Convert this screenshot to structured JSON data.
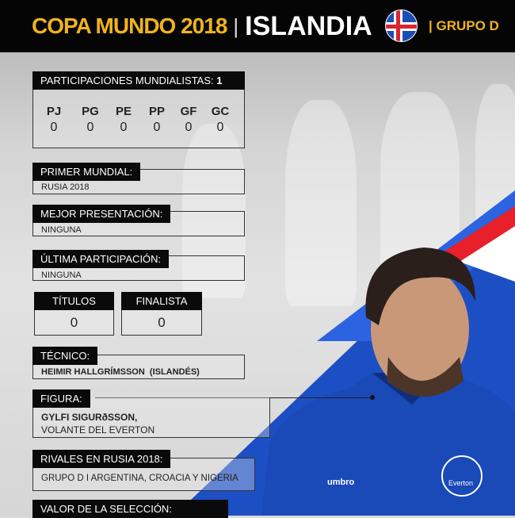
{
  "header": {
    "title_left": "COPA MUNDO 2018",
    "separator": "|",
    "title_right": "ISLANDIA",
    "group": "| GRUPO D",
    "flag_icon": "iceland-flag-icon",
    "accent": "#f0b41c"
  },
  "participaciones": {
    "label": "PARTICIPACIONES MUNDIALISTAS:",
    "count": "1",
    "stats": [
      {
        "k": "PJ",
        "v": "0"
      },
      {
        "k": "PG",
        "v": "0"
      },
      {
        "k": "PE",
        "v": "0"
      },
      {
        "k": "PP",
        "v": "0"
      },
      {
        "k": "GF",
        "v": "0"
      },
      {
        "k": "GC",
        "v": "0"
      }
    ]
  },
  "primer_mundial": {
    "label": "PRIMER MUNDIAL:",
    "value": "RUSIA 2018"
  },
  "mejor_presentacion": {
    "label": "MEJOR PRESENTACIÓN:",
    "value": "NINGUNA"
  },
  "ultima_participacion": {
    "label": "ÚLTIMA PARTICIPACIÓN:",
    "value": "NINGUNA"
  },
  "titulos": {
    "label": "TÍTULOS",
    "value": "0"
  },
  "finalista": {
    "label": "FINALISTA",
    "value": "0"
  },
  "tecnico": {
    "label": "TÉCNICO:",
    "name": "HEIMIR HALLGRÍMSSON",
    "nationality": "(ISLANDÉS)"
  },
  "figura": {
    "label": "FIGURA:",
    "name": "GYLFI SIGURðSSON,",
    "role": "VOLANTE DEL EVERTON"
  },
  "rivales": {
    "label": "RIVALES EN RUSIA 2018:",
    "value": "GRUPO D I ARGENTINA, CROACIA Y NIGERIA"
  },
  "valor": {
    "label": "VALOR DE LA SELECCIÓN:"
  },
  "player": {
    "shirt_brand": "umbro",
    "club": "Everton"
  }
}
